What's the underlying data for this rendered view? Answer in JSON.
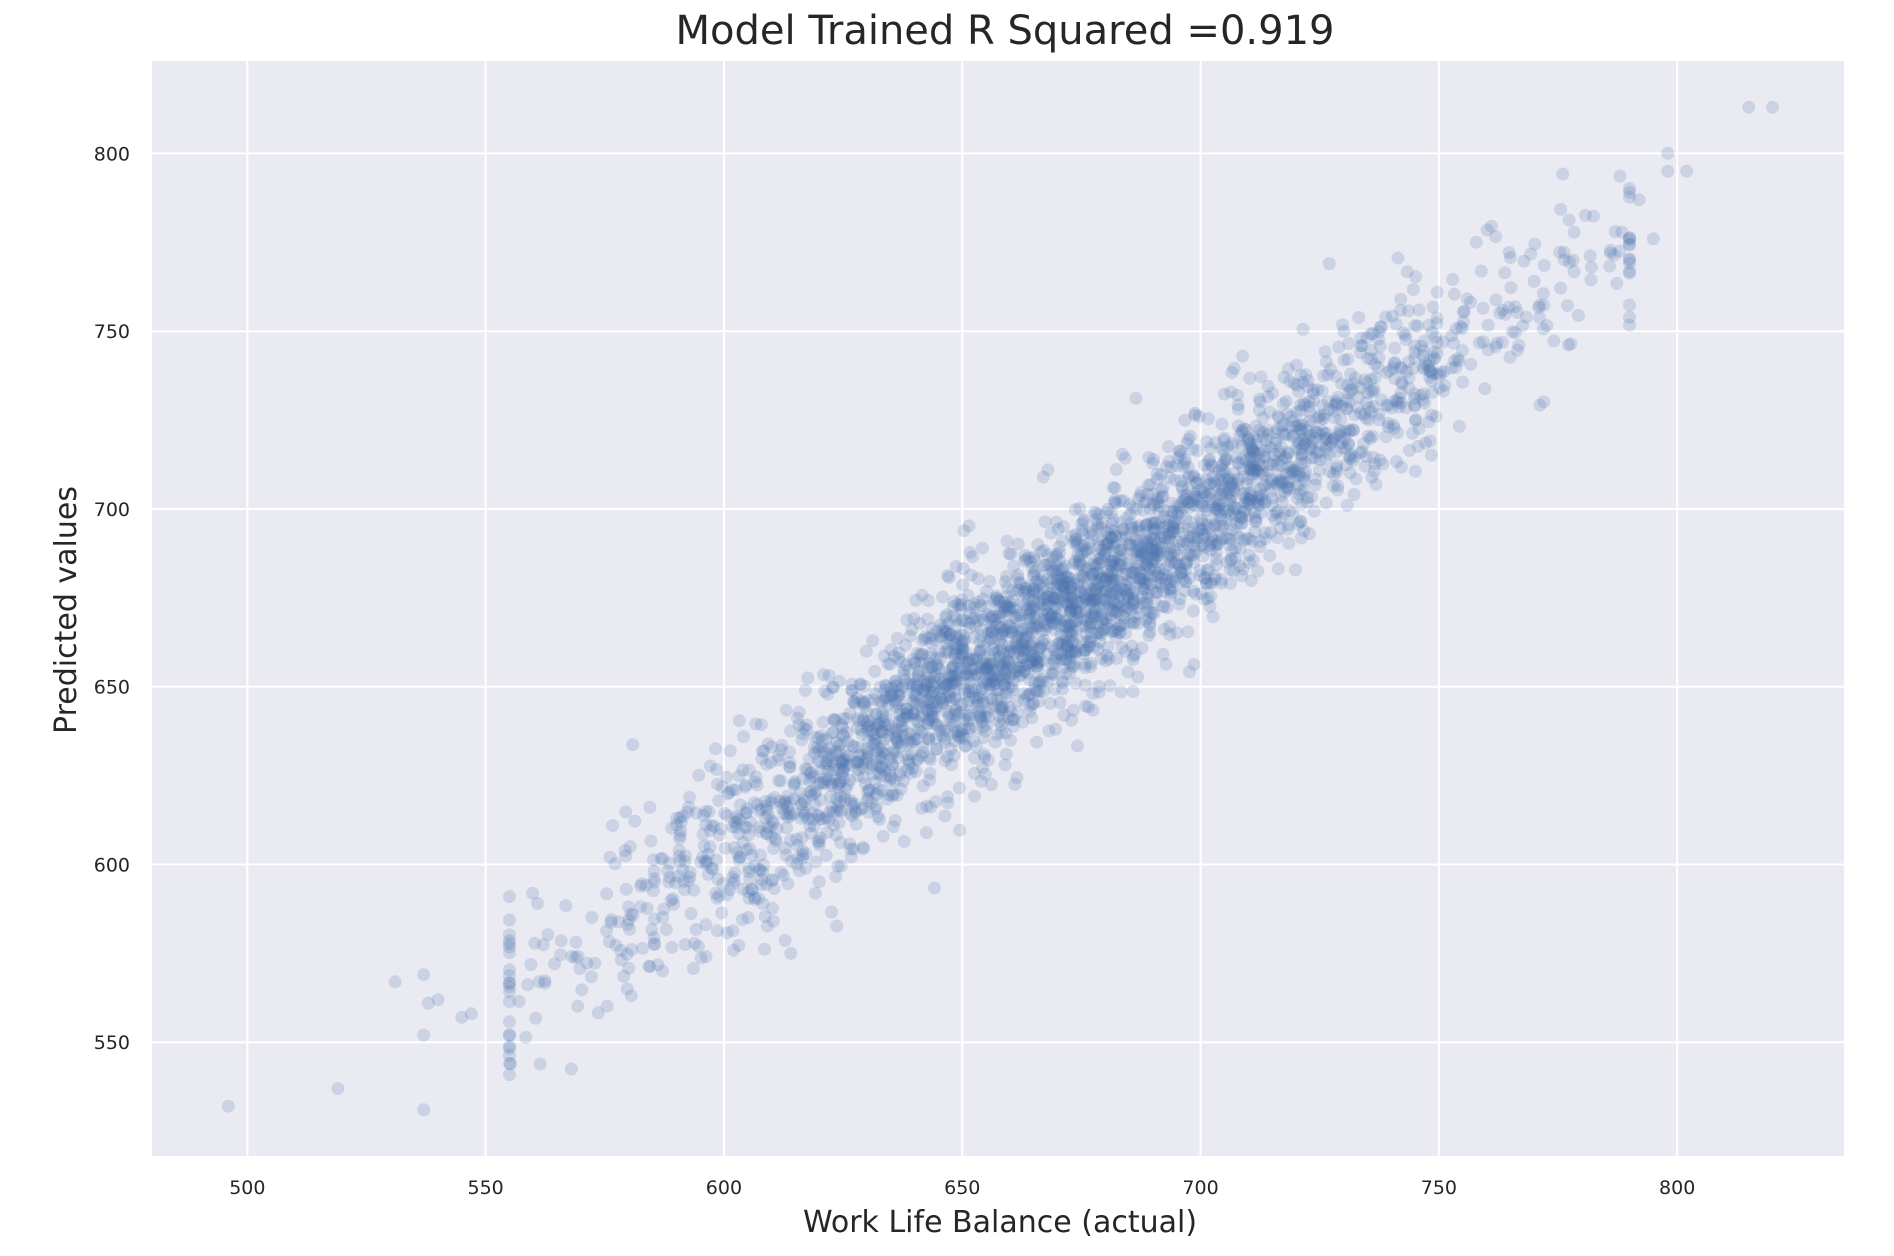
{
  "chart_data": {
    "type": "scatter",
    "title": "Model Trained R Squared =0.919",
    "xlabel": "Work Life Balance (actual)",
    "ylabel": "Predicted values",
    "xlim": [
      480,
      835
    ],
    "ylim": [
      518,
      826
    ],
    "xticks": [
      500,
      550,
      600,
      650,
      700,
      750,
      800
    ],
    "yticks": [
      550,
      600,
      650,
      700,
      750,
      800
    ],
    "grid": true,
    "background": "#eaeaf2",
    "grid_color": "#ffffff",
    "point_color": "#4c72b0",
    "point_alpha": 0.2,
    "r_squared": 0.919,
    "n_points": 3200,
    "regression_fit": {
      "slope": 0.92,
      "intercept": 53
    },
    "residual_sd": 13,
    "x_distribution": {
      "mean": 670,
      "sd": 45,
      "min": 555,
      "max": 790
    },
    "outlier_points": [
      [
        496,
        532
      ],
      [
        519,
        537
      ],
      [
        531,
        567
      ],
      [
        537,
        569
      ],
      [
        537,
        531
      ],
      [
        537,
        552
      ],
      [
        538,
        561
      ],
      [
        540,
        562
      ],
      [
        545,
        557
      ],
      [
        547,
        558
      ],
      [
        815,
        813
      ],
      [
        820,
        813
      ],
      [
        798,
        800
      ],
      [
        798,
        795
      ],
      [
        802,
        795
      ],
      [
        790,
        789
      ],
      [
        792,
        787
      ],
      [
        795,
        776
      ],
      [
        787,
        778
      ],
      [
        786,
        772
      ],
      [
        782,
        768
      ],
      [
        727,
        769
      ],
      [
        667,
        709
      ],
      [
        668,
        711
      ],
      [
        614,
        575
      ]
    ]
  }
}
